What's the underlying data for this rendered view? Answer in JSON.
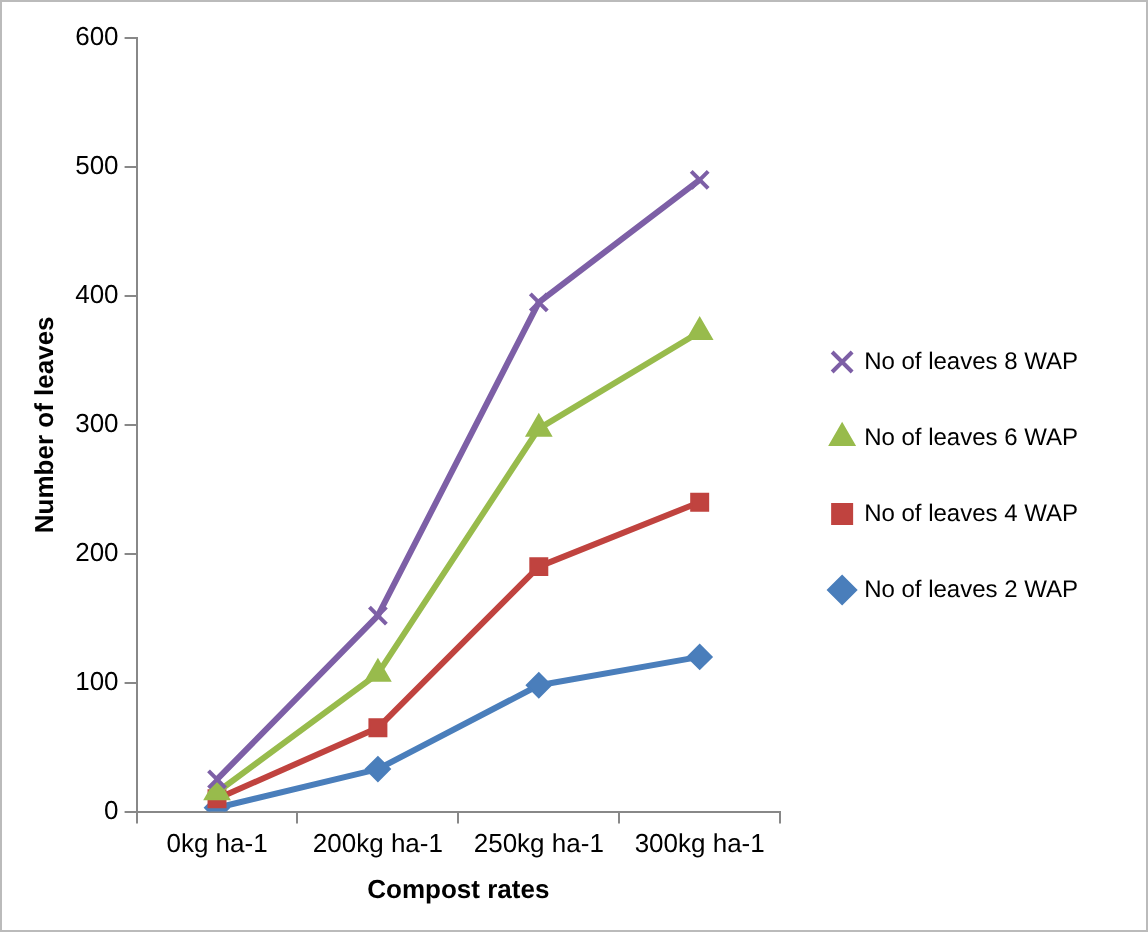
{
  "chart_data": {
    "type": "line",
    "xlabel": "Compost rates",
    "ylabel": "Number of leaves",
    "categories": [
      "0kg ha-1",
      "200kg ha-1",
      "250kg ha-1",
      "300kg ha-1"
    ],
    "series": [
      {
        "name": "No of leaves 8 WAP",
        "color": "#7d5fa6",
        "marker": "cross",
        "values": [
          25,
          152,
          395,
          490
        ]
      },
      {
        "name": "No of leaves 6 WAP",
        "color": "#98bb4c",
        "marker": "triangle",
        "values": [
          15,
          107,
          297,
          372
        ]
      },
      {
        "name": "No of leaves 4 WAP",
        "color": "#c0433f",
        "marker": "square",
        "values": [
          10,
          65,
          190,
          240
        ]
      },
      {
        "name": "No of leaves 2 WAP",
        "color": "#4a7ebb",
        "marker": "diamond",
        "values": [
          3,
          33,
          98,
          120
        ]
      }
    ],
    "ylim": [
      0,
      600
    ],
    "yticks": [
      0,
      100,
      200,
      300,
      400,
      500,
      600
    ],
    "grid": false,
    "legend": "right",
    "line_style": "solid"
  }
}
